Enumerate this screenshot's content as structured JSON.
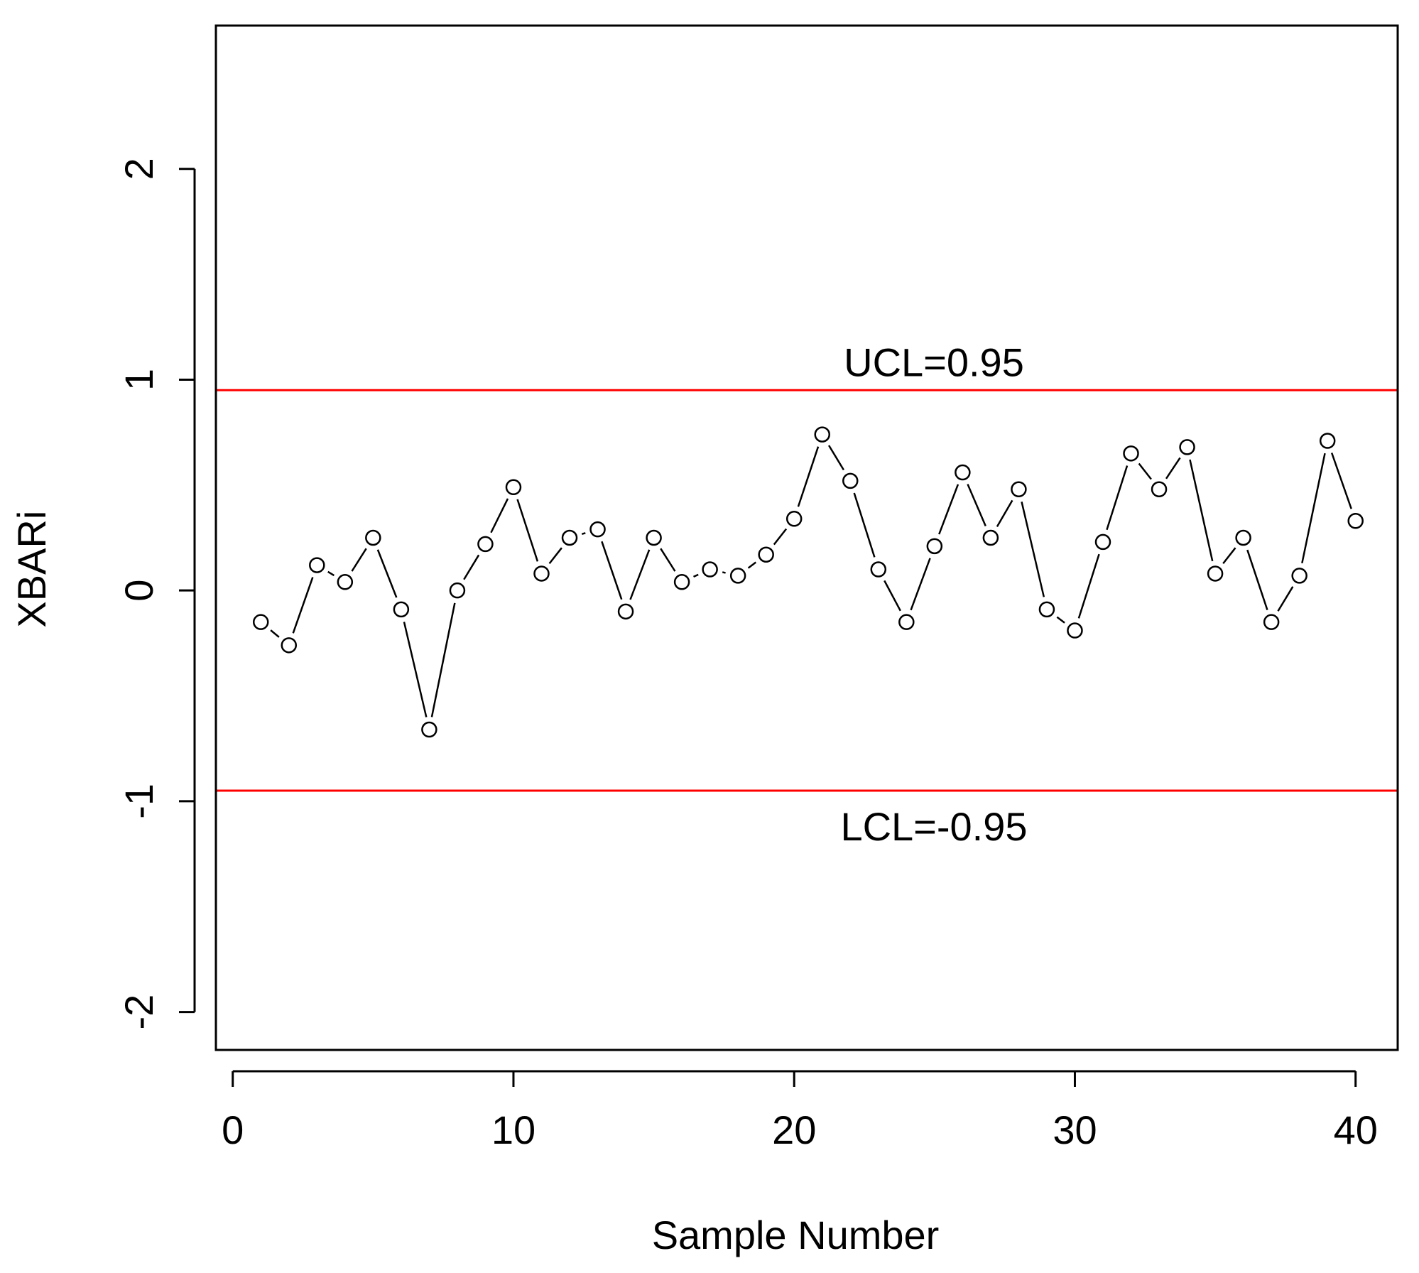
{
  "chart_data": {
    "type": "line",
    "title": "",
    "xlabel": "Sample Number",
    "ylabel": "XBARi",
    "xlim": [
      -0.6,
      41.5
    ],
    "ylim": [
      -2.18,
      2.68
    ],
    "xticks": [
      0,
      10,
      20,
      30,
      40
    ],
    "yticks": [
      -2,
      -1,
      0,
      1,
      2
    ],
    "xtick_labels": [
      "0",
      "10",
      "20",
      "30",
      "40"
    ],
    "ytick_labels": [
      "-2",
      "-1",
      "0",
      "1",
      "2"
    ],
    "grid": false,
    "legend": "none",
    "series": [
      {
        "marker": "open-circle",
        "color": "#000000",
        "x": [
          1,
          2,
          3,
          4,
          5,
          6,
          7,
          8,
          9,
          10,
          11,
          12,
          13,
          14,
          15,
          16,
          17,
          18,
          19,
          20,
          21,
          22,
          23,
          24,
          25,
          26,
          27,
          28,
          29,
          30,
          31,
          32,
          33,
          34,
          35,
          36,
          37,
          38,
          39,
          40
        ],
        "y": [
          -0.15,
          -0.26,
          0.12,
          0.04,
          0.25,
          -0.09,
          -0.66,
          0.0,
          0.22,
          0.49,
          0.08,
          0.25,
          0.29,
          -0.1,
          0.25,
          0.04,
          0.1,
          0.07,
          0.17,
          0.34,
          0.74,
          0.52,
          0.1,
          -0.15,
          0.21,
          0.56,
          0.25,
          0.48,
          -0.09,
          -0.19,
          0.23,
          0.65,
          0.48,
          0.68,
          0.08,
          0.25,
          -0.15,
          0.07,
          0.71,
          0.33
        ]
      }
    ],
    "control_limits": [
      {
        "label": "UCL=0.95",
        "value": 0.95,
        "color": "#ff0000",
        "label_position": "above"
      },
      {
        "label": "LCL=-0.95",
        "value": -0.95,
        "color": "#ff0000",
        "label_position": "below"
      }
    ]
  }
}
